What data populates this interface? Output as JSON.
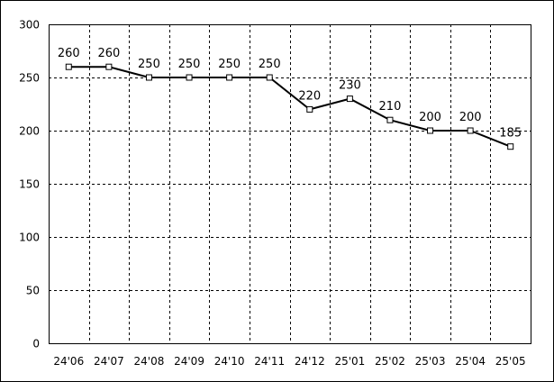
{
  "chart_data": {
    "type": "line",
    "title": "",
    "xlabel": "",
    "ylabel": "",
    "categories": [
      "24'06",
      "24'07",
      "24'08",
      "24'09",
      "24'10",
      "24'11",
      "24'12",
      "25'01",
      "25'02",
      "25'03",
      "25'04",
      "25'05"
    ],
    "series": [
      {
        "values": [
          260,
          260,
          250,
          250,
          250,
          250,
          220,
          230,
          210,
          200,
          200,
          185
        ],
        "color": "#000000",
        "marker": "open-square"
      }
    ],
    "data_labels": [
      "260",
      "260",
      "250",
      "250",
      "250",
      "250",
      "220",
      "230",
      "210",
      "200",
      "200",
      "185"
    ],
    "ylim": [
      0,
      300
    ],
    "yticks": [
      0,
      50,
      100,
      150,
      200,
      250,
      300
    ],
    "ytick_labels": [
      "0",
      "50",
      "100",
      "150",
      "200",
      "250",
      "300"
    ],
    "grid": true,
    "grid_style": "dashed",
    "legend": "none"
  }
}
